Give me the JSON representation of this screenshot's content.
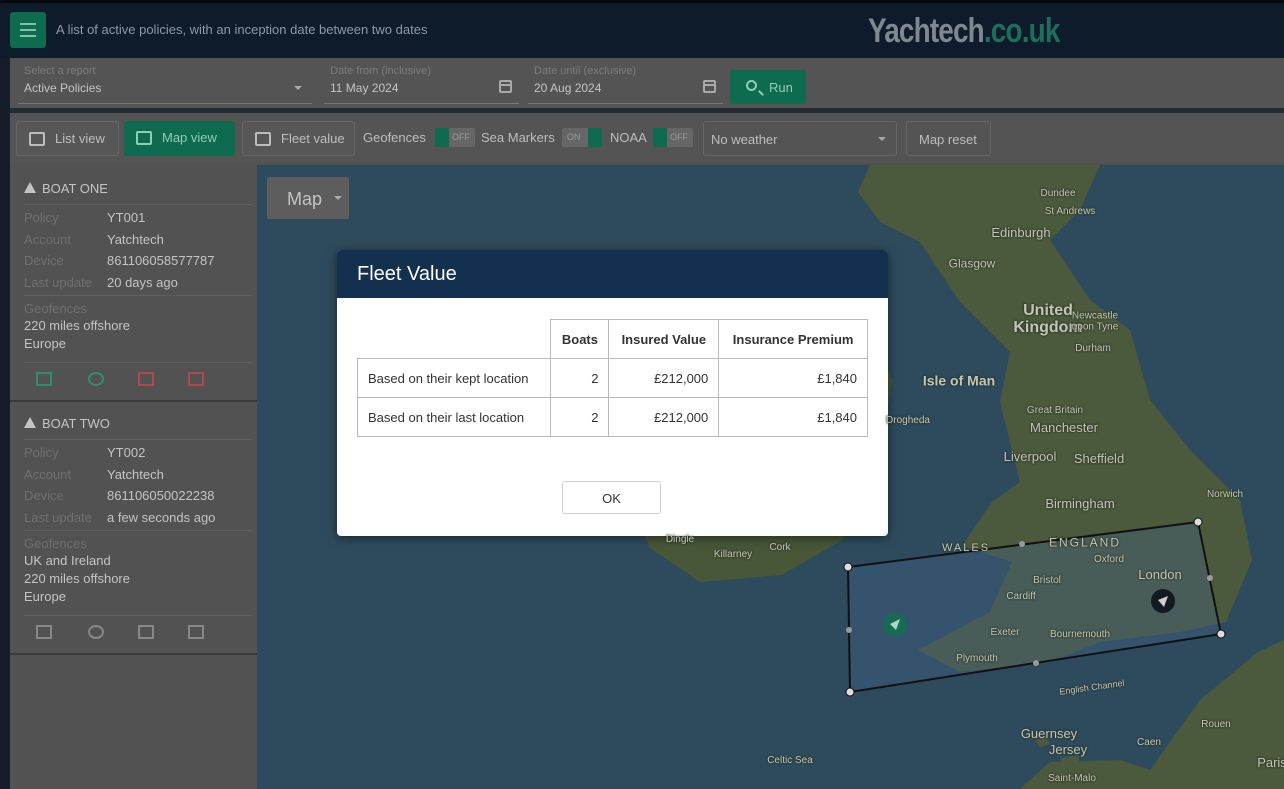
{
  "header": {
    "subtitle": "A list of active policies, with an inception date between two dates",
    "logo_main": "Yachtech",
    "logo_domain": ".co.uk"
  },
  "filters": {
    "report_label": "Select a report",
    "report_value": "Active Policies",
    "date_from_label": "Date from (inclusive)",
    "date_from": "11 May 2024",
    "date_until_label": "Date until (exclusive)",
    "date_until": "20 Aug 2024",
    "run": "Run"
  },
  "toolbar": {
    "list_view": "List view",
    "map_view": "Map view",
    "fleet_value": "Fleet value",
    "geofences": "Geofences",
    "geofences_toggle": "OFF",
    "sea_markers": "Sea Markers",
    "sea_markers_toggle": "ON",
    "noaa": "NOAA",
    "noaa_toggle": "OFF",
    "weather": "No weather",
    "map_reset": "Map reset"
  },
  "boats": [
    {
      "name": "BOAT ONE",
      "fields": [
        {
          "label": "Policy",
          "value": "YT001"
        },
        {
          "label": "Account",
          "value": "Yatchtech"
        },
        {
          "label": "Device",
          "value": "861106058577787"
        },
        {
          "label": "Last update",
          "value": "20 days ago"
        }
      ],
      "geofences_label": "Geofences",
      "geofences": [
        "220 miles offshore",
        "Europe"
      ]
    },
    {
      "name": "BOAT TWO",
      "fields": [
        {
          "label": "Policy",
          "value": "YT002"
        },
        {
          "label": "Account",
          "value": "Yatchtech"
        },
        {
          "label": "Device",
          "value": "861106050022238"
        },
        {
          "label": "Last update",
          "value": "a few seconds ago"
        }
      ],
      "geofences_label": "Geofences",
      "geofences": [
        "UK and Ireland",
        "220 miles offshore",
        "Europe"
      ]
    }
  ],
  "map": {
    "type_button": "Map",
    "labels": [
      "Dundee",
      "St Andrews",
      "Edinburgh",
      "Glasgow",
      "United Kingdom",
      "Newcastle upon Tyne",
      "Durham",
      "Isle of Man",
      "Great Britain",
      "Manchester",
      "Liverpool",
      "Sheffield",
      "Birmingham",
      "Norwich",
      "WALES",
      "ENGLAND",
      "Oxford",
      "London",
      "Bristol",
      "Cardiff",
      "Exeter",
      "Bournemouth",
      "Plymouth",
      "English Channel",
      "Dingle",
      "Killarney",
      "Cork",
      "Drogheda",
      "Guernsey",
      "Jersey",
      "Saint-Malo",
      "Caen",
      "Rouen",
      "Celtic Sea",
      "Paris"
    ]
  },
  "modal": {
    "title": "Fleet Value",
    "table": {
      "header": [
        "Boats",
        "Insured Value",
        "Insurance Premium"
      ],
      "rows": [
        [
          "Based on their kept location",
          "2",
          "£212,000",
          "£1,840"
        ],
        [
          "Based on their last location",
          "2",
          "£212,000",
          "£1,840"
        ]
      ]
    },
    "ok": "OK"
  }
}
